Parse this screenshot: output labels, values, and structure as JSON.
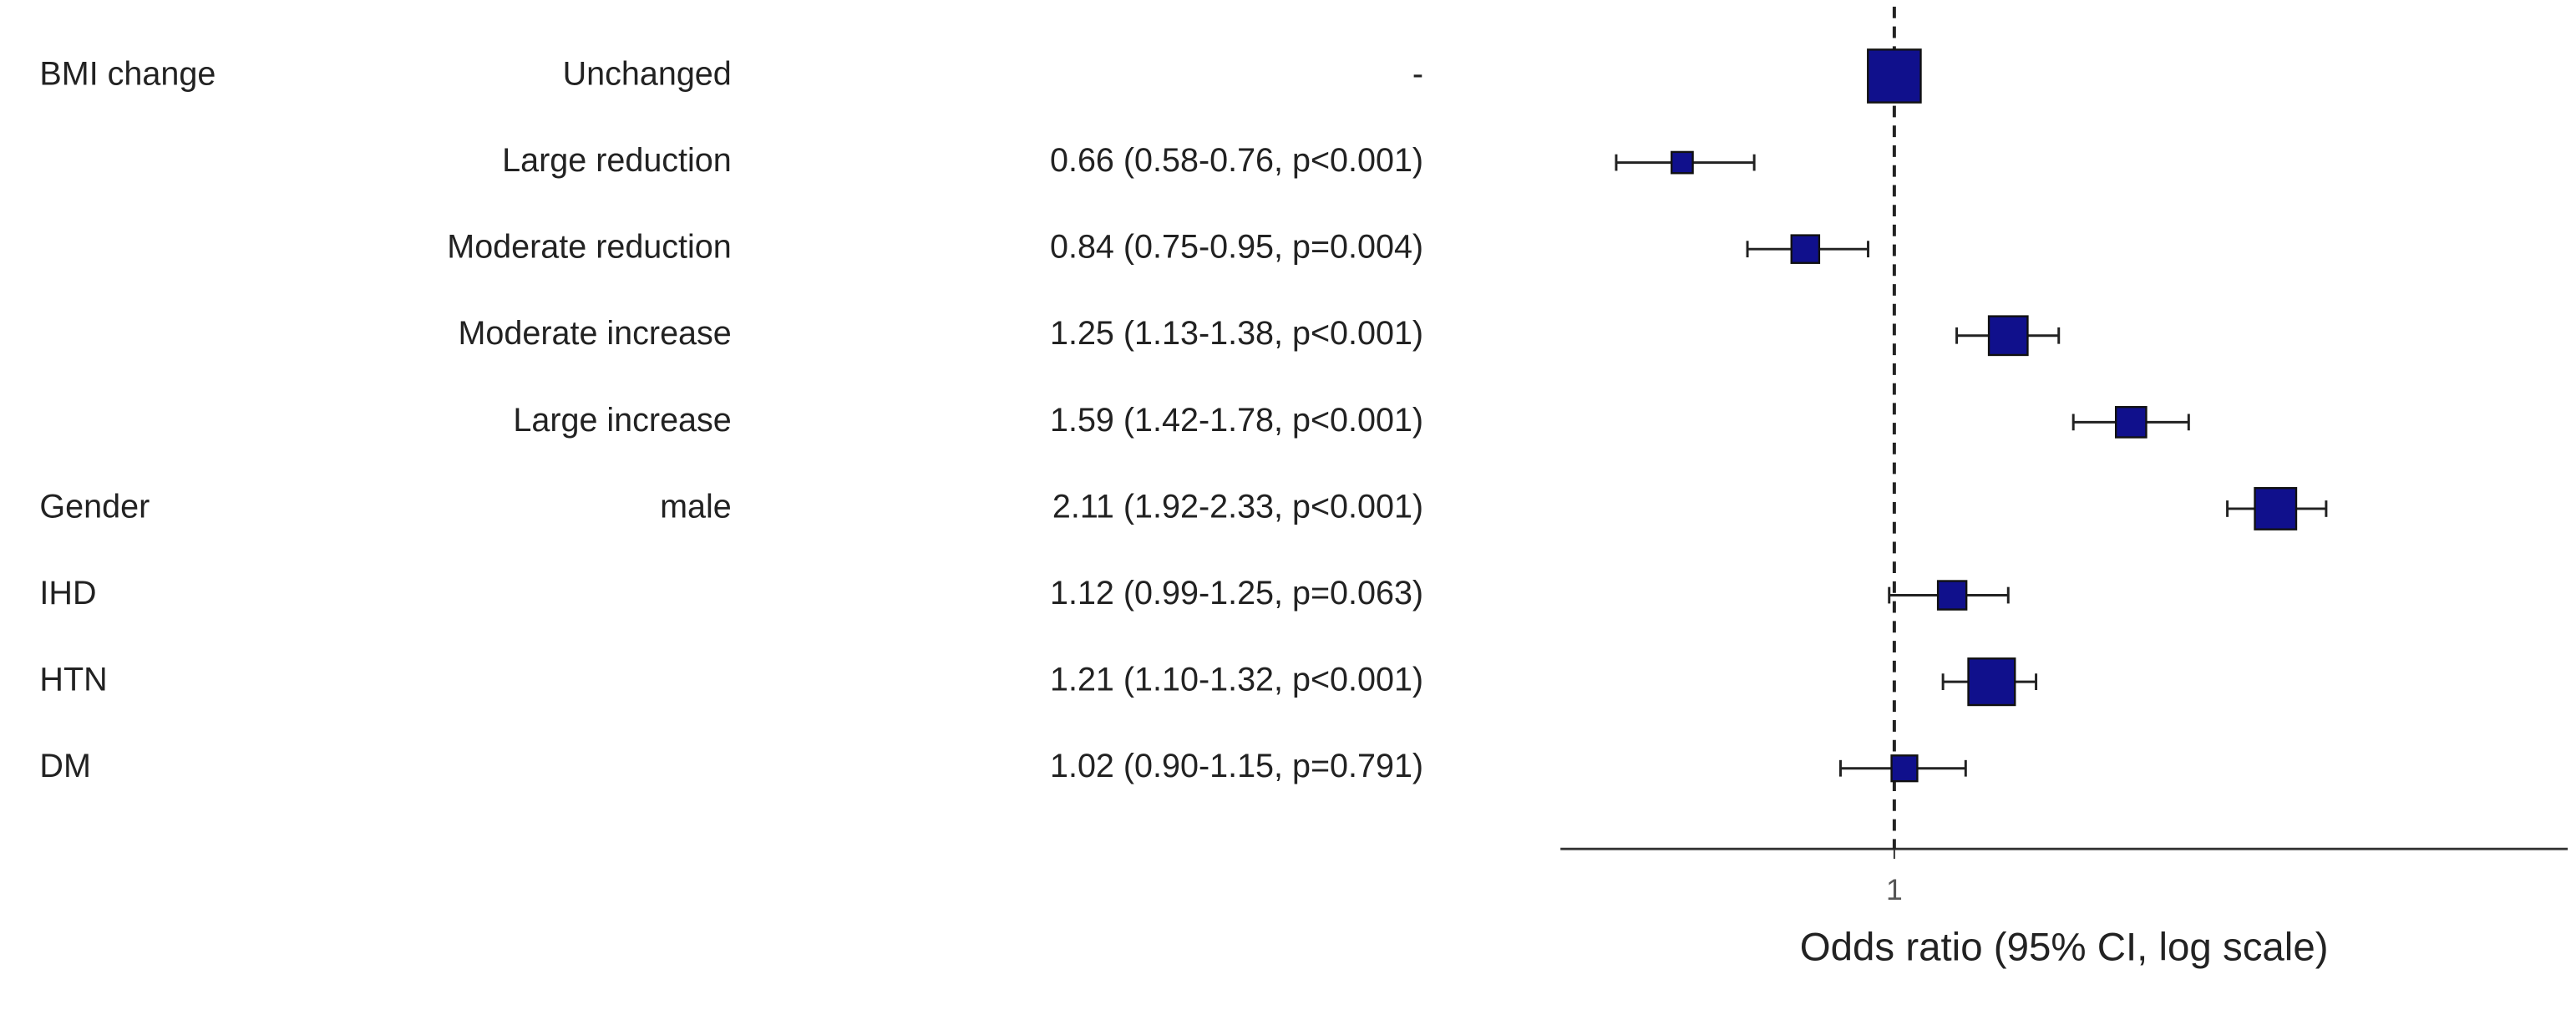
{
  "chart_data": {
    "type": "forest",
    "xlabel": "Odds ratio (95% CI, log scale)",
    "log_x": true,
    "xlim": [
      0.52,
      3.74
    ],
    "xticks": [
      1
    ],
    "reference_line": 1,
    "box_color": "#10108c",
    "rows": [
      {
        "variable": "BMI change",
        "level": "Unchanged",
        "label": "-",
        "value": 1,
        "lower": null,
        "upper": null
      },
      {
        "level": "Large reduction",
        "label": "0.66 (0.58-0.76, p<0.001)",
        "value": 0.66,
        "lower": 0.58,
        "upper": 0.76
      },
      {
        "level": "Moderate reduction",
        "label": "0.84 (0.75-0.95, p=0.004)",
        "value": 0.84,
        "lower": 0.75,
        "upper": 0.95
      },
      {
        "level": "Moderate increase",
        "label": "1.25 (1.13-1.38, p<0.001)",
        "value": 1.25,
        "lower": 1.13,
        "upper": 1.38
      },
      {
        "level": "Large increase",
        "label": "1.59 (1.42-1.78, p<0.001)",
        "value": 1.59,
        "lower": 1.42,
        "upper": 1.78
      },
      {
        "variable": "Gender",
        "level": "male",
        "label": "2.11 (1.92-2.33, p<0.001)",
        "value": 2.11,
        "lower": 1.92,
        "upper": 2.33
      },
      {
        "variable": "IHD",
        "label": "1.12 (0.99-1.25, p=0.063)",
        "value": 1.12,
        "lower": 0.99,
        "upper": 1.25
      },
      {
        "variable": "HTN",
        "label": "1.21 (1.10-1.32, p<0.001)",
        "value": 1.21,
        "lower": 1.1,
        "upper": 1.32
      },
      {
        "variable": "DM",
        "label": "1.02 (0.90-1.15, p=0.791)",
        "value": 1.02,
        "lower": 0.9,
        "upper": 1.15
      }
    ]
  }
}
